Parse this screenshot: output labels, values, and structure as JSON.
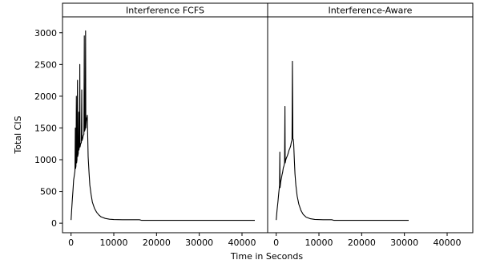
{
  "chart_data": {
    "type": "line",
    "xlabel": "Time in Seconds",
    "ylabel": "Total CIS",
    "xlim": [
      -2000,
      46000
    ],
    "ylim": [
      -150,
      3250
    ],
    "x_ticks": [
      0,
      10000,
      20000,
      30000,
      40000
    ],
    "x_tick_labels": [
      "0",
      "10000",
      "20000",
      "30000",
      "40000"
    ],
    "y_ticks": [
      0,
      500,
      1000,
      1500,
      2000,
      2500,
      3000
    ],
    "y_tick_labels": [
      "0",
      "500",
      "1000",
      "1500",
      "2000",
      "2500",
      "3000"
    ],
    "panels": [
      {
        "title": "Interference FCFS",
        "points": [
          [
            0,
            50
          ],
          [
            150,
            220
          ],
          [
            300,
            380
          ],
          [
            450,
            520
          ],
          [
            600,
            680
          ],
          [
            750,
            750
          ],
          [
            900,
            820
          ],
          [
            1000,
            1500
          ],
          [
            1050,
            860
          ],
          [
            1150,
            900
          ],
          [
            1250,
            2000
          ],
          [
            1300,
            950
          ],
          [
            1400,
            1000
          ],
          [
            1500,
            2250
          ],
          [
            1550,
            1050
          ],
          [
            1700,
            1100
          ],
          [
            1800,
            1750
          ],
          [
            1850,
            1150
          ],
          [
            1950,
            1200
          ],
          [
            2050,
            2500
          ],
          [
            2100,
            1200
          ],
          [
            2250,
            1250
          ],
          [
            2400,
            1270
          ],
          [
            2500,
            2100
          ],
          [
            2550,
            1300
          ],
          [
            2700,
            1330
          ],
          [
            2850,
            1380
          ],
          [
            3000,
            1400
          ],
          [
            3100,
            2950
          ],
          [
            3150,
            1450
          ],
          [
            3300,
            1480
          ],
          [
            3400,
            3030
          ],
          [
            3450,
            1500
          ],
          [
            3550,
            1600
          ],
          [
            3650,
            1650
          ],
          [
            3750,
            1680
          ],
          [
            3800,
            1700
          ],
          [
            3900,
            1350
          ],
          [
            4000,
            1050
          ],
          [
            4200,
            800
          ],
          [
            4400,
            600
          ],
          [
            4700,
            450
          ],
          [
            5000,
            330
          ],
          [
            5500,
            230
          ],
          [
            6000,
            170
          ],
          [
            6500,
            130
          ],
          [
            7000,
            100
          ],
          [
            8000,
            75
          ],
          [
            9000,
            62
          ],
          [
            10000,
            57
          ],
          [
            12000,
            55
          ],
          [
            16000,
            55
          ],
          [
            16500,
            45
          ],
          [
            25000,
            45
          ],
          [
            35000,
            45
          ],
          [
            43000,
            45
          ]
        ]
      },
      {
        "title": "Interference-Aware",
        "points": [
          [
            0,
            50
          ],
          [
            200,
            200
          ],
          [
            400,
            330
          ],
          [
            600,
            480
          ],
          [
            800,
            600
          ],
          [
            850,
            1120
          ],
          [
            900,
            560
          ],
          [
            1050,
            650
          ],
          [
            1200,
            700
          ],
          [
            1350,
            760
          ],
          [
            1500,
            800
          ],
          [
            1650,
            870
          ],
          [
            1800,
            900
          ],
          [
            1950,
            950
          ],
          [
            2050,
            1840
          ],
          [
            2100,
            950
          ],
          [
            2250,
            1000
          ],
          [
            2400,
            1030
          ],
          [
            2600,
            1060
          ],
          [
            2800,
            1100
          ],
          [
            3000,
            1150
          ],
          [
            3200,
            1180
          ],
          [
            3400,
            1220
          ],
          [
            3550,
            1280
          ],
          [
            3700,
            1310
          ],
          [
            3800,
            2550
          ],
          [
            3900,
            1330
          ],
          [
            4000,
            1320
          ],
          [
            4100,
            1250
          ],
          [
            4250,
            1000
          ],
          [
            4400,
            780
          ],
          [
            4600,
            600
          ],
          [
            4900,
            430
          ],
          [
            5300,
            300
          ],
          [
            5800,
            200
          ],
          [
            6300,
            140
          ],
          [
            7000,
            95
          ],
          [
            8000,
            70
          ],
          [
            9000,
            60
          ],
          [
            11000,
            55
          ],
          [
            13000,
            55
          ],
          [
            13500,
            45
          ],
          [
            20000,
            45
          ],
          [
            31000,
            45
          ]
        ]
      }
    ]
  }
}
